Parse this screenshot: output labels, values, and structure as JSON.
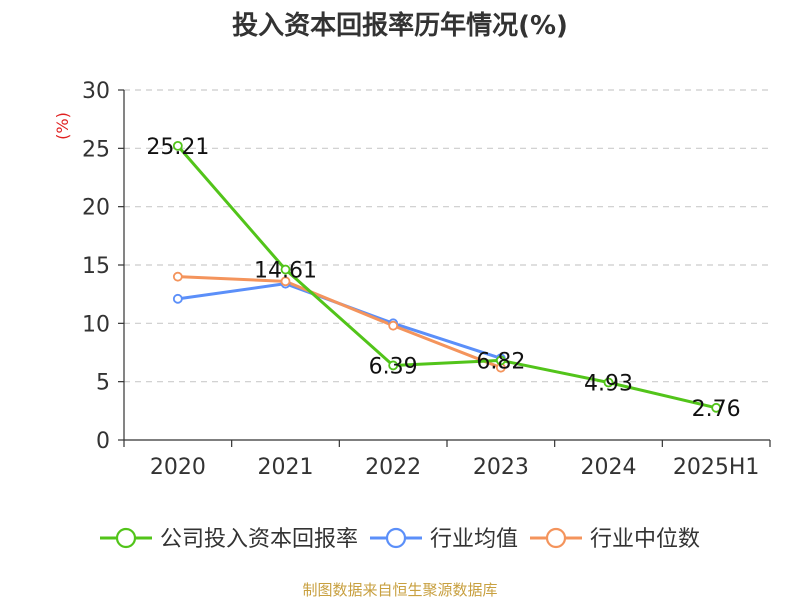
{
  "chart_data": {
    "type": "line",
    "title": "投入资本回报率历年情况(%)",
    "ylabel": "(%)",
    "xlabel": "",
    "categories": [
      "2020",
      "2021",
      "2022",
      "2023",
      "2024",
      "2025H1"
    ],
    "ylim": [
      0,
      30
    ],
    "yticks": [
      0,
      5,
      10,
      15,
      20,
      25,
      30
    ],
    "grid": true,
    "legend_position": "bottom",
    "series": [
      {
        "name": "公司投入资本回报率",
        "color": "#52c41a",
        "values": [
          25.21,
          14.61,
          6.39,
          6.82,
          4.93,
          2.76
        ],
        "labels": [
          "25.21",
          "14.61",
          "6.39",
          "6.82",
          "4.93",
          "2.76"
        ]
      },
      {
        "name": "行业均值",
        "color": "#5b8ff9",
        "values": [
          12.1,
          13.4,
          10.0,
          7.0,
          null,
          null
        ]
      },
      {
        "name": "行业中位数",
        "color": "#f4945c",
        "values": [
          14.0,
          13.6,
          9.8,
          6.2,
          null,
          null
        ]
      }
    ]
  },
  "source": "制图数据来自恒生聚源数据库"
}
